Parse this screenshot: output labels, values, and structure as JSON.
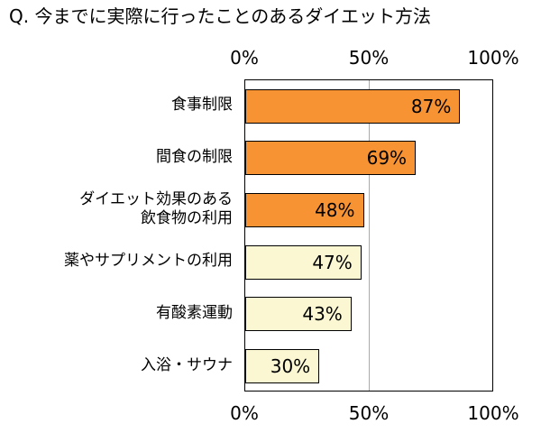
{
  "chart_data": {
    "type": "bar",
    "orientation": "horizontal",
    "title": "Q. 今までに実際に行ったことのあるダイエット方法",
    "categories": [
      "食事制限",
      "間食の制限",
      "ダイエット効果のある\n飲食物の利用",
      "薬やサプリメントの利用",
      "有酸素運動",
      "入浴・サウナ"
    ],
    "values": [
      87,
      69,
      48,
      47,
      43,
      30
    ],
    "value_labels": [
      "87%",
      "69%",
      "48%",
      "47%",
      "43%",
      "30%"
    ],
    "xlim": [
      0,
      100
    ],
    "x_ticks": [
      "0%",
      "50%",
      "100%"
    ],
    "x_tick_values": [
      0,
      50,
      100
    ],
    "grid": "vertical line at 50%",
    "legend": "none",
    "bar_colors": [
      "#F79333",
      "#F79333",
      "#F79333",
      "#FAF7D2",
      "#FAF7D2",
      "#FAF7D2"
    ],
    "colors": {
      "bar_orange": "#F79333",
      "bar_cream": "#FAF7D2",
      "bar_border": "#000000",
      "plot_border": "#000000",
      "gridline": "#aaaaaa",
      "text": "#000000",
      "background": "#ffffff"
    }
  }
}
